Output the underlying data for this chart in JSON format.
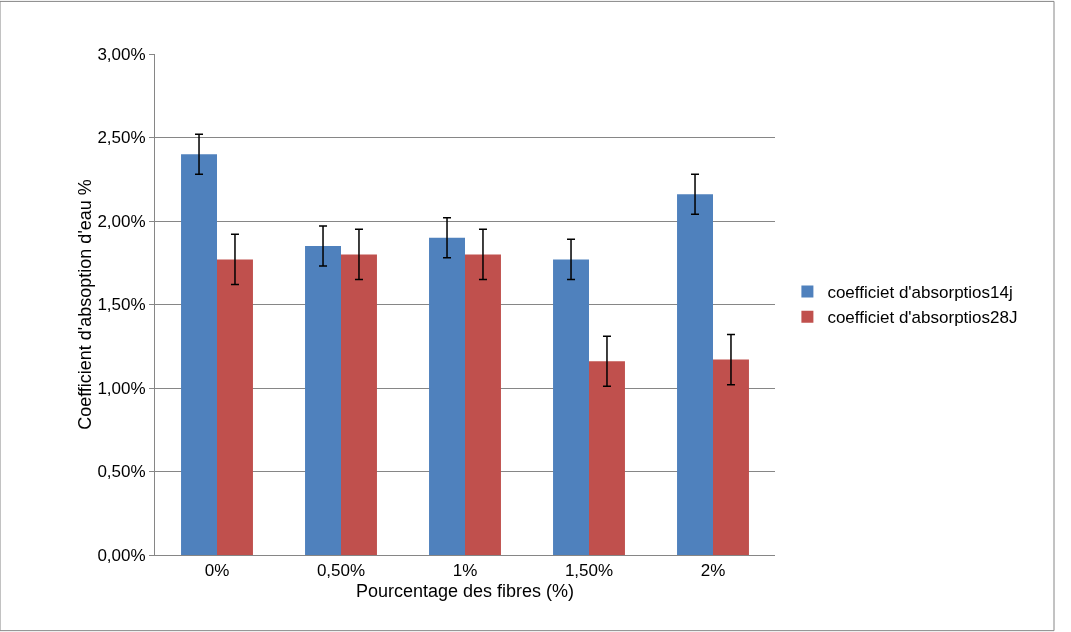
{
  "chart_data": {
    "type": "bar",
    "xlabel": "Pourcentage des fibres (%)",
    "ylabel": "Coefficient d'absoption d'eau %",
    "categories": [
      "0%",
      "0,50%",
      "1%",
      "1,50%",
      "2%"
    ],
    "series": [
      {
        "name": "coefficiet d'absorptios14j",
        "color": "#4f81bd",
        "values": [
          2.4,
          1.85,
          1.9,
          1.77,
          2.16
        ],
        "errors": [
          0.12,
          0.12,
          0.12,
          0.12,
          0.12
        ]
      },
      {
        "name": "coefficiet d'absorptios28J",
        "color": "#c0504d",
        "values": [
          1.77,
          1.8,
          1.8,
          1.16,
          1.17
        ],
        "errors": [
          0.15,
          0.15,
          0.15,
          0.15,
          0.15
        ]
      }
    ],
    "ylim": [
      0,
      3
    ],
    "yticks": [
      {
        "value": 0,
        "label": "0,00%"
      },
      {
        "value": 0.5,
        "label": "0,50%"
      },
      {
        "value": 1,
        "label": "1,00%"
      },
      {
        "value": 1.5,
        "label": "1,50%"
      },
      {
        "value": 2,
        "label": "2,00%"
      },
      {
        "value": 2.5,
        "label": "2,50%"
      },
      {
        "value": 3,
        "label": "3,00%"
      }
    ],
    "grid": "y",
    "legend": "right"
  }
}
